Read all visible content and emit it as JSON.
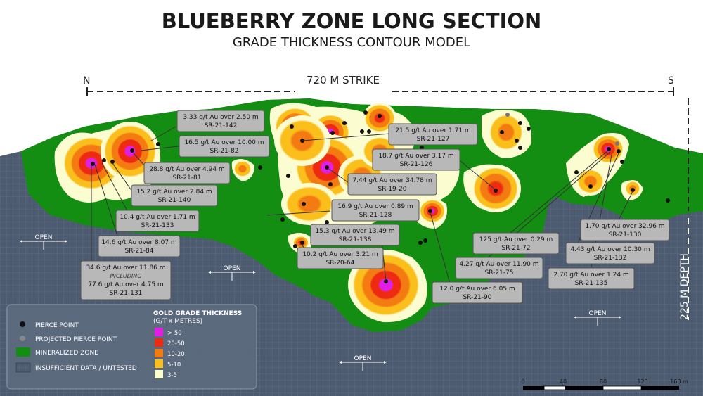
{
  "title": "BLUEBERRY ZONE LONG SECTION",
  "subtitle": "GRADE THICKNESS CONTOUR MODEL",
  "strike": {
    "north": "N",
    "label": "720 M STRIKE",
    "south": "S"
  },
  "depth_label": "225 M DEPTH",
  "open_labels": [
    "OPEN",
    "OPEN",
    "OPEN",
    "OPEN"
  ],
  "callouts": [
    {
      "grade": "3.33 g/t Au over 2.50 m",
      "hole": "SR-21-142"
    },
    {
      "grade": "16.5 g/t Au over 10.00 m",
      "hole": "SR-21-82"
    },
    {
      "grade": "28.8 g/t Au over 4.94 m",
      "hole": "SR-21-81"
    },
    {
      "grade": "15.2 g/t Au over 2.84 m",
      "hole": "SR-21-140"
    },
    {
      "grade": "10.4 g/t Au over 1.71 m",
      "hole": "SR-21-133"
    },
    {
      "grade": "14.6 g/t Au over 8.07 m",
      "hole": "SR-21-84"
    },
    {
      "grade": "21.5 g/t Au over 1.71 m",
      "hole": "SR-21-127"
    },
    {
      "grade": "18.7 g/t Au over 3.17 m",
      "hole": "SR-21-126"
    },
    {
      "grade": "7.44 g/t Au over 34.78 m",
      "hole": "SR-19-20"
    },
    {
      "grade": "16.9 g/t Au over 0.89 m",
      "hole": "SR-21-128"
    },
    {
      "grade": "15.3 g/t Au over 13.49 m",
      "hole": "SR-21-138"
    },
    {
      "grade": "10.2 g/t Au over 3.21 m",
      "hole": "SR-20-64"
    },
    {
      "grade": "125 g/t Au over 0.29 m",
      "hole": "SR-21-72"
    },
    {
      "grade": "4.27 g/t Au over 11.90 m",
      "hole": "SR-21-75"
    },
    {
      "grade": "12.0 g/t Au over 6.05 m",
      "hole": "SR-21-90"
    },
    {
      "grade": "1.70 g/t Au over 32.96 m",
      "hole": "SR-21-130"
    },
    {
      "grade": "4.43 g/t Au over 10.30 m",
      "hole": "SR-21-132"
    },
    {
      "grade": "2.70 g/t Au over 1.24 m",
      "hole": "SR-21-135"
    }
  ],
  "callout_big": {
    "line1": "34.6 g/t Au over 11.86 m",
    "line2": "INCLUDING",
    "line3": "77.6 g/t Au over 4.75 m",
    "hole": "SR-21-131"
  },
  "legend": {
    "items": [
      {
        "label": "PIERCE POINT",
        "symbol": "black-dot"
      },
      {
        "label": "PROJECTED PIERCE POINT",
        "symbol": "grey-dot"
      },
      {
        "label": "MINERALIZED ZONE",
        "symbol": "green-box"
      },
      {
        "label": "INSUFFICIENT DATA / UNTESTED",
        "symbol": "blue-grid-box"
      }
    ],
    "scale_title_1": "GOLD GRADE THICKNESS",
    "scale_title_2": "(G/T x METRES)",
    "scale": [
      {
        "label": "> 50",
        "color": "#e21ee6"
      },
      {
        "label": "20-50",
        "color": "#ee2a12"
      },
      {
        "label": "10-20",
        "color": "#f47a12"
      },
      {
        "label": "5-10",
        "color": "#fbbf1c"
      },
      {
        "label": "3-5",
        "color": "#fbfcd0"
      }
    ]
  },
  "scale_bar": {
    "ticks": [
      "0",
      "40",
      "80",
      "120",
      "160 m"
    ]
  },
  "colors": {
    "mineralized": "#138e12",
    "untested": "#4d5b70",
    "pale": "#fbfcd0",
    "yellow": "#fbbf1c",
    "orange": "#f47a12",
    "red": "#ee2a12",
    "magenta": "#e21ee6"
  }
}
